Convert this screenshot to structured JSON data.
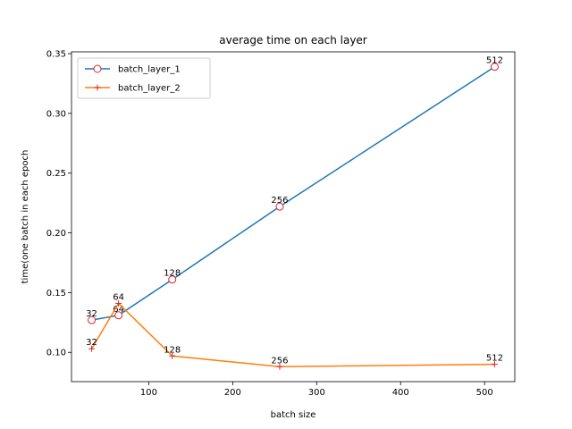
{
  "chart_data": {
    "type": "line",
    "title": "average time on each layer",
    "xlabel": "batch size",
    "ylabel": "time(one batch in each epoch",
    "xlim": [
      8,
      536
    ],
    "ylim": [
      0.0755,
      0.3515
    ],
    "xticks": [
      100,
      200,
      300,
      400,
      500
    ],
    "yticks": [
      0.1,
      0.15,
      0.2,
      0.25,
      0.3,
      0.35
    ],
    "xtick_labels": [
      "100",
      "200",
      "300",
      "400",
      "500"
    ],
    "ytick_labels": [
      "0.10",
      "0.15",
      "0.20",
      "0.25",
      "0.30",
      "0.35"
    ],
    "grid": false,
    "legend": "upper-left",
    "series": [
      {
        "name": "batch_layer_1",
        "color": "#1f77b4",
        "marker": "open-circle",
        "marker_edge_color": "#d62728",
        "x": [
          32,
          64,
          128,
          256,
          512
        ],
        "y": [
          0.127,
          0.131,
          0.161,
          0.222,
          0.339
        ],
        "point_labels": [
          "32",
          "64",
          "128",
          "256",
          "512"
        ]
      },
      {
        "name": "batch_layer_2",
        "color": "#ff7f0e",
        "marker": "plus",
        "marker_edge_color": "#d62728",
        "x": [
          32,
          64,
          128,
          256,
          512
        ],
        "y": [
          0.103,
          0.141,
          0.097,
          0.088,
          0.09
        ],
        "point_labels": [
          "32",
          "64",
          "128",
          "256",
          "512"
        ]
      }
    ]
  }
}
